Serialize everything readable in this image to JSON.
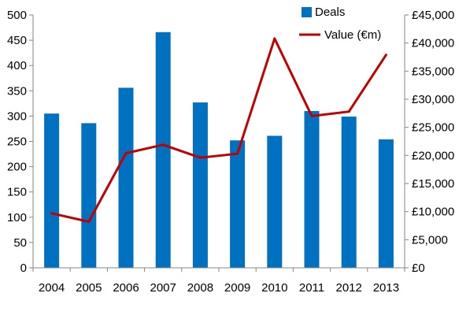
{
  "chart_data": {
    "type": "bar",
    "categories": [
      "2004",
      "2005",
      "2006",
      "2007",
      "2008",
      "2009",
      "2010",
      "2011",
      "2012",
      "2013"
    ],
    "series": [
      {
        "name": "Deals",
        "type": "bar",
        "axis": "left",
        "color": "#0070C0",
        "values": [
          305,
          286,
          356,
          466,
          327,
          252,
          261,
          310,
          299,
          254
        ]
      },
      {
        "name": "Value (€m)",
        "type": "line",
        "axis": "right",
        "color": "#C00000",
        "values": [
          9700,
          8200,
          20400,
          21900,
          19600,
          20300,
          40800,
          27000,
          27800,
          37900
        ]
      }
    ],
    "left_axis": {
      "ylim": [
        0,
        500
      ],
      "ticks": [
        "0",
        "50",
        "100",
        "150",
        "200",
        "250",
        "300",
        "350",
        "400",
        "450",
        "500"
      ]
    },
    "right_axis": {
      "ylim": [
        0,
        45000
      ],
      "ticks": [
        "£0",
        "£5,000",
        "£10,000",
        "£15,000",
        "£20,000",
        "£25,000",
        "£30,000",
        "£35,000",
        "£40,000",
        "£45,000"
      ]
    },
    "grid": false,
    "legend_position": "top-right"
  }
}
